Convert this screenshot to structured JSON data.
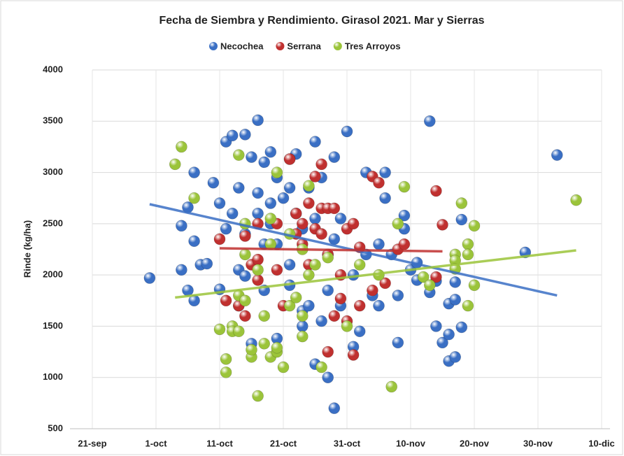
{
  "chart_data": {
    "type": "scatter",
    "title": "Fecha de Siembra y Rendimiento. Girasol 2021. Mar y Sierras",
    "y_label": "Rinde (kg/ha)",
    "xlim": [
      264,
      344
    ],
    "xticks": [
      {
        "value": 264,
        "label": "21-sep"
      },
      {
        "value": 274,
        "label": "1-oct"
      },
      {
        "value": 284,
        "label": "11-oct"
      },
      {
        "value": 294,
        "label": "21-oct"
      },
      {
        "value": 304,
        "label": "31-oct"
      },
      {
        "value": 314,
        "label": "10-nov"
      },
      {
        "value": 324,
        "label": "20-nov"
      },
      {
        "value": 334,
        "label": "30-nov"
      },
      {
        "value": 344,
        "label": "10-dic"
      }
    ],
    "ylim": [
      500,
      4000
    ],
    "yticks": [
      500,
      1000,
      1500,
      2000,
      2500,
      3000,
      3500,
      4000
    ],
    "grid": true,
    "legend": "top",
    "series": [
      {
        "name": "Necochea",
        "color": "#3a6fc4",
        "x": [
          273,
          278,
          278,
          279,
          279,
          280,
          280,
          280,
          281,
          282,
          283,
          284,
          284,
          285,
          285,
          286,
          286,
          287,
          287,
          287,
          288,
          288,
          288,
          289,
          289,
          290,
          290,
          290,
          291,
          291,
          291,
          292,
          292,
          292,
          293,
          293,
          293,
          294,
          295,
          295,
          295,
          296,
          296,
          297,
          297,
          297,
          298,
          298,
          299,
          299,
          299,
          300,
          300,
          301,
          301,
          301,
          302,
          302,
          302,
          303,
          303,
          304,
          305,
          305,
          306,
          307,
          307,
          308,
          309,
          309,
          310,
          310,
          311,
          312,
          312,
          313,
          313,
          314,
          315,
          315,
          317,
          317,
          318,
          318,
          319,
          320,
          320,
          320,
          321,
          321,
          321,
          322,
          322,
          332,
          337
        ],
        "values": [
          1970,
          2050,
          2480,
          2660,
          1850,
          2330,
          1750,
          3000,
          2100,
          2110,
          2900,
          2700,
          1860,
          2450,
          3300,
          2600,
          3360,
          2850,
          1700,
          2050,
          3370,
          2400,
          1990,
          3150,
          1330,
          2800,
          2600,
          3510,
          2300,
          1850,
          3100,
          2700,
          3200,
          2500,
          2950,
          1380,
          2300,
          2750,
          1900,
          2850,
          2100,
          3180,
          2600,
          1650,
          1500,
          2450,
          2850,
          1700,
          3300,
          1130,
          2550,
          1550,
          2950,
          2200,
          1000,
          1850,
          2350,
          700,
          3150,
          2550,
          1700,
          3400,
          2000,
          1300,
          1450,
          2200,
          3000,
          1800,
          2300,
          1700,
          3000,
          2750,
          2200,
          1800,
          1340,
          2580,
          2450,
          2050,
          2120,
          1950,
          3500,
          1830,
          1940,
          1500,
          1340,
          1720,
          1160,
          1420,
          1930,
          1200,
          1760,
          2540,
          1490,
          2220,
          3170
        ],
        "trendline": {
          "x": [
            273,
            337
          ],
          "values": [
            2690,
            1800
          ]
        }
      },
      {
        "name": "Serrana",
        "color": "#c0302f",
        "x": [
          284,
          285,
          287,
          288,
          288,
          289,
          290,
          290,
          290,
          293,
          293,
          294,
          295,
          295,
          296,
          296,
          297,
          297,
          298,
          298,
          299,
          299,
          300,
          300,
          300,
          301,
          301,
          301,
          302,
          302,
          303,
          303,
          304,
          304,
          305,
          305,
          306,
          306,
          308,
          308,
          309,
          310,
          312,
          313,
          318,
          318,
          319
        ],
        "values": [
          2350,
          1750,
          1700,
          2380,
          1600,
          2100,
          2500,
          2150,
          1950,
          2500,
          2050,
          1700,
          3130,
          3130,
          2400,
          2600,
          2500,
          2300,
          2700,
          2100,
          2960,
          2450,
          3080,
          2650,
          2400,
          2200,
          1250,
          2650,
          2650,
          1600,
          1770,
          2000,
          2450,
          1550,
          1220,
          2500,
          1700,
          2270,
          1850,
          2960,
          2900,
          1920,
          2250,
          2300,
          1980,
          2820,
          2490
        ],
        "trendline": {
          "x": [
            284,
            319
          ],
          "values": [
            2260,
            2230
          ]
        }
      },
      {
        "name": "Tres Arroyos",
        "color": "#9bc43a",
        "x": [
          277,
          278,
          280,
          284,
          285,
          285,
          286,
          286,
          287,
          287,
          287,
          288,
          288,
          288,
          289,
          289,
          290,
          290,
          291,
          291,
          292,
          292,
          292,
          293,
          293,
          293,
          294,
          295,
          295,
          296,
          297,
          297,
          297,
          298,
          298,
          299,
          300,
          301,
          304,
          306,
          309,
          311,
          312,
          313,
          316,
          317,
          321,
          321,
          321,
          322,
          323,
          323,
          323,
          324,
          324,
          340
        ],
        "values": [
          3080,
          3250,
          2750,
          1470,
          1180,
          1050,
          1500,
          1450,
          1800,
          1450,
          3170,
          2500,
          1750,
          2200,
          1200,
          1270,
          2050,
          820,
          1330,
          1600,
          2300,
          2550,
          1200,
          1250,
          3000,
          1290,
          1100,
          1700,
          2400,
          1780,
          1400,
          2250,
          1600,
          2870,
          2000,
          2100,
          1100,
          2170,
          1500,
          2100,
          2000,
          910,
          2500,
          2860,
          1980,
          1900,
          2200,
          2140,
          2060,
          2700,
          1700,
          2300,
          2200,
          2480,
          1900,
          2730
        ],
        "trendline": {
          "x": [
            277,
            340
          ],
          "values": [
            1780,
            2240
          ]
        }
      }
    ]
  }
}
